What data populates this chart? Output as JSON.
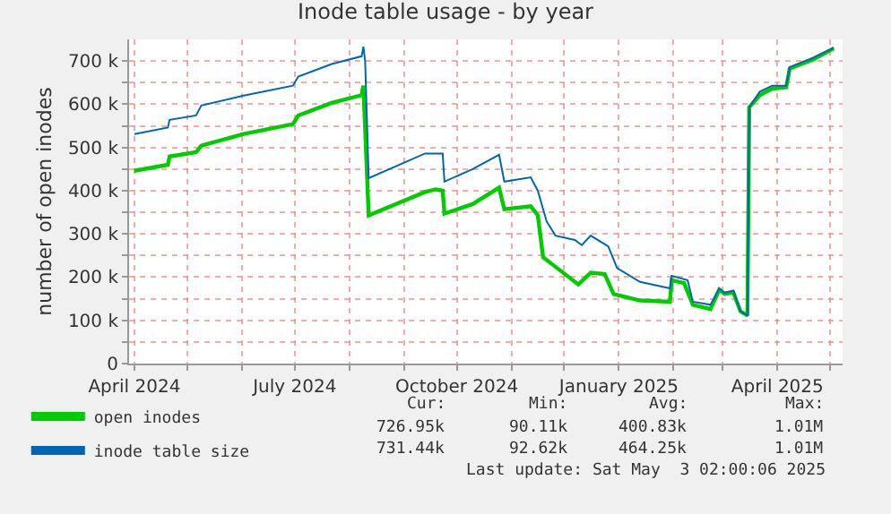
{
  "chart_data": {
    "type": "line",
    "title": "Inode table usage - by year",
    "ylabel": "number of open inodes",
    "xlim": [
      "2024-03-29",
      "2025-05-08"
    ],
    "xticks": [
      {
        "value": "2024-04-01",
        "label": "April 2024"
      },
      {
        "value": "2024-05-01",
        "label": null
      },
      {
        "value": "2024-06-01",
        "label": null
      },
      {
        "value": "2024-07-01",
        "label": "July 2024"
      },
      {
        "value": "2024-08-01",
        "label": null
      },
      {
        "value": "2024-09-01",
        "label": null
      },
      {
        "value": "2024-10-01",
        "label": "October 2024"
      },
      {
        "value": "2024-11-01",
        "label": null
      },
      {
        "value": "2024-12-01",
        "label": null
      },
      {
        "value": "2025-01-01",
        "label": "January 2025"
      },
      {
        "value": "2025-02-01",
        "label": null
      },
      {
        "value": "2025-03-01",
        "label": null
      },
      {
        "value": "2025-04-01",
        "label": "April 2025"
      },
      {
        "value": "2025-05-01",
        "label": null
      }
    ],
    "ylim": [
      0,
      750000
    ],
    "yticks": [
      0,
      {
        "value": 50000,
        "label": null
      },
      {
        "value": 100000,
        "label": "100 k"
      },
      {
        "value": 150000,
        "label": null
      },
      {
        "value": 200000,
        "label": "200 k"
      },
      {
        "value": 250000,
        "label": null
      },
      {
        "value": 300000,
        "label": "300 k"
      },
      {
        "value": 350000,
        "label": null
      },
      {
        "value": 400000,
        "label": "400 k"
      },
      {
        "value": 450000,
        "label": null
      },
      {
        "value": 500000,
        "label": "500 k"
      },
      {
        "value": 550000,
        "label": null
      },
      {
        "value": 600000,
        "label": "600 k"
      },
      {
        "value": 650000,
        "label": null
      },
      {
        "value": 700000,
        "label": "700 k"
      }
    ],
    "grid": true,
    "legend": "bottom",
    "marker": "none",
    "line_style": "solid",
    "series": [
      {
        "name": "open inodes",
        "color": "#00cc00",
        "x": [
          "2024-04-01",
          "2024-04-20",
          "2024-04-21",
          "2024-05-06",
          "2024-05-09",
          "2024-06-02",
          "2024-06-30",
          "2024-07-03",
          "2024-07-22",
          "2024-08-08",
          "2024-08-09",
          "2024-08-12",
          "2024-09-13",
          "2024-09-19",
          "2024-09-23",
          "2024-09-24",
          "2024-10-10",
          "2024-10-25",
          "2024-10-28",
          "2024-11-12",
          "2024-11-16",
          "2024-11-19",
          "2024-11-26",
          "2024-12-09",
          "2024-12-16",
          "2024-12-24",
          "2024-12-29",
          "2025-01-13",
          "2025-01-30",
          "2025-01-31",
          "2025-02-07",
          "2025-02-12",
          "2025-02-22",
          "2025-02-27",
          "2025-03-02",
          "2025-03-07",
          "2025-03-11",
          "2025-03-15",
          "2025-03-16",
          "2025-03-22",
          "2025-03-29",
          "2025-04-06",
          "2025-04-08",
          "2025-04-21",
          "2025-05-03"
        ],
        "values": [
          446000,
          460000,
          479000,
          489000,
          504000,
          531000,
          554000,
          574000,
          603000,
          621000,
          643000,
          343000,
          397000,
          403000,
          400000,
          347000,
          369000,
          407000,
          357000,
          364000,
          343000,
          246000,
          224000,
          183000,
          210000,
          207000,
          161000,
          146000,
          143000,
          193000,
          186000,
          136000,
          126000,
          171000,
          161000,
          164000,
          121000,
          111000,
          593000,
          621000,
          636000,
          639000,
          683000,
          703000,
          729000
        ]
      },
      {
        "name": "inode table size",
        "color": "#0066b3",
        "x": [
          "2024-04-01",
          "2024-04-20",
          "2024-04-21",
          "2024-05-06",
          "2024-05-09",
          "2024-06-02",
          "2024-06-30",
          "2024-07-03",
          "2024-07-22",
          "2024-08-08",
          "2024-08-09",
          "2024-08-10",
          "2024-08-12",
          "2024-09-13",
          "2024-09-23",
          "2024-09-24",
          "2024-10-10",
          "2024-10-25",
          "2024-10-28",
          "2024-11-12",
          "2024-11-16",
          "2024-11-21",
          "2024-11-26",
          "2024-12-07",
          "2024-12-11",
          "2024-12-16",
          "2024-12-26",
          "2024-12-31",
          "2025-01-13",
          "2025-01-30",
          "2025-01-31",
          "2025-02-09",
          "2025-02-12",
          "2025-02-22",
          "2025-02-27",
          "2025-03-02",
          "2025-03-07",
          "2025-03-11",
          "2025-03-15",
          "2025-03-16",
          "2025-03-22",
          "2025-03-29",
          "2025-04-06",
          "2025-04-08",
          "2025-04-21",
          "2025-05-03"
        ],
        "values": [
          531000,
          546000,
          564000,
          574000,
          597000,
          620000,
          643000,
          664000,
          693000,
          711000,
          733000,
          700000,
          429000,
          486000,
          486000,
          421000,
          450000,
          483000,
          421000,
          431000,
          400000,
          329000,
          296000,
          286000,
          274000,
          296000,
          271000,
          221000,
          189000,
          174000,
          203000,
          193000,
          143000,
          136000,
          174000,
          164000,
          169000,
          121000,
          111000,
          593000,
          629000,
          643000,
          643000,
          686000,
          707000,
          731000
        ]
      }
    ],
    "annotations": [
      "Cur:",
      "Min:",
      "Avg:",
      "Max:",
      "726.95k",
      "90.11k",
      "400.83k",
      "1.01M",
      "731.44k",
      "92.62k",
      "464.25k",
      "1.01M",
      "Last update: Sat May  3 02:00:06 2025"
    ]
  }
}
